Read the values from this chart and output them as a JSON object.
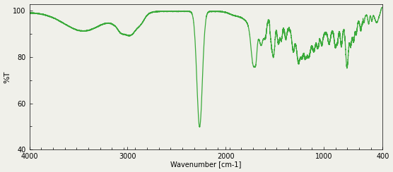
{
  "line_color": "#3aaa3a",
  "background_color": "#f0f0ea",
  "xlabel": "Wavenumber [cm-1]",
  "ylabel": "%T",
  "xlim": [
    4000,
    400
  ],
  "ylim": [
    40,
    103
  ],
  "yticks": [
    40,
    60,
    80,
    100
  ],
  "xticks": [
    4000,
    3000,
    2000,
    1000,
    400
  ],
  "linewidth": 0.9
}
